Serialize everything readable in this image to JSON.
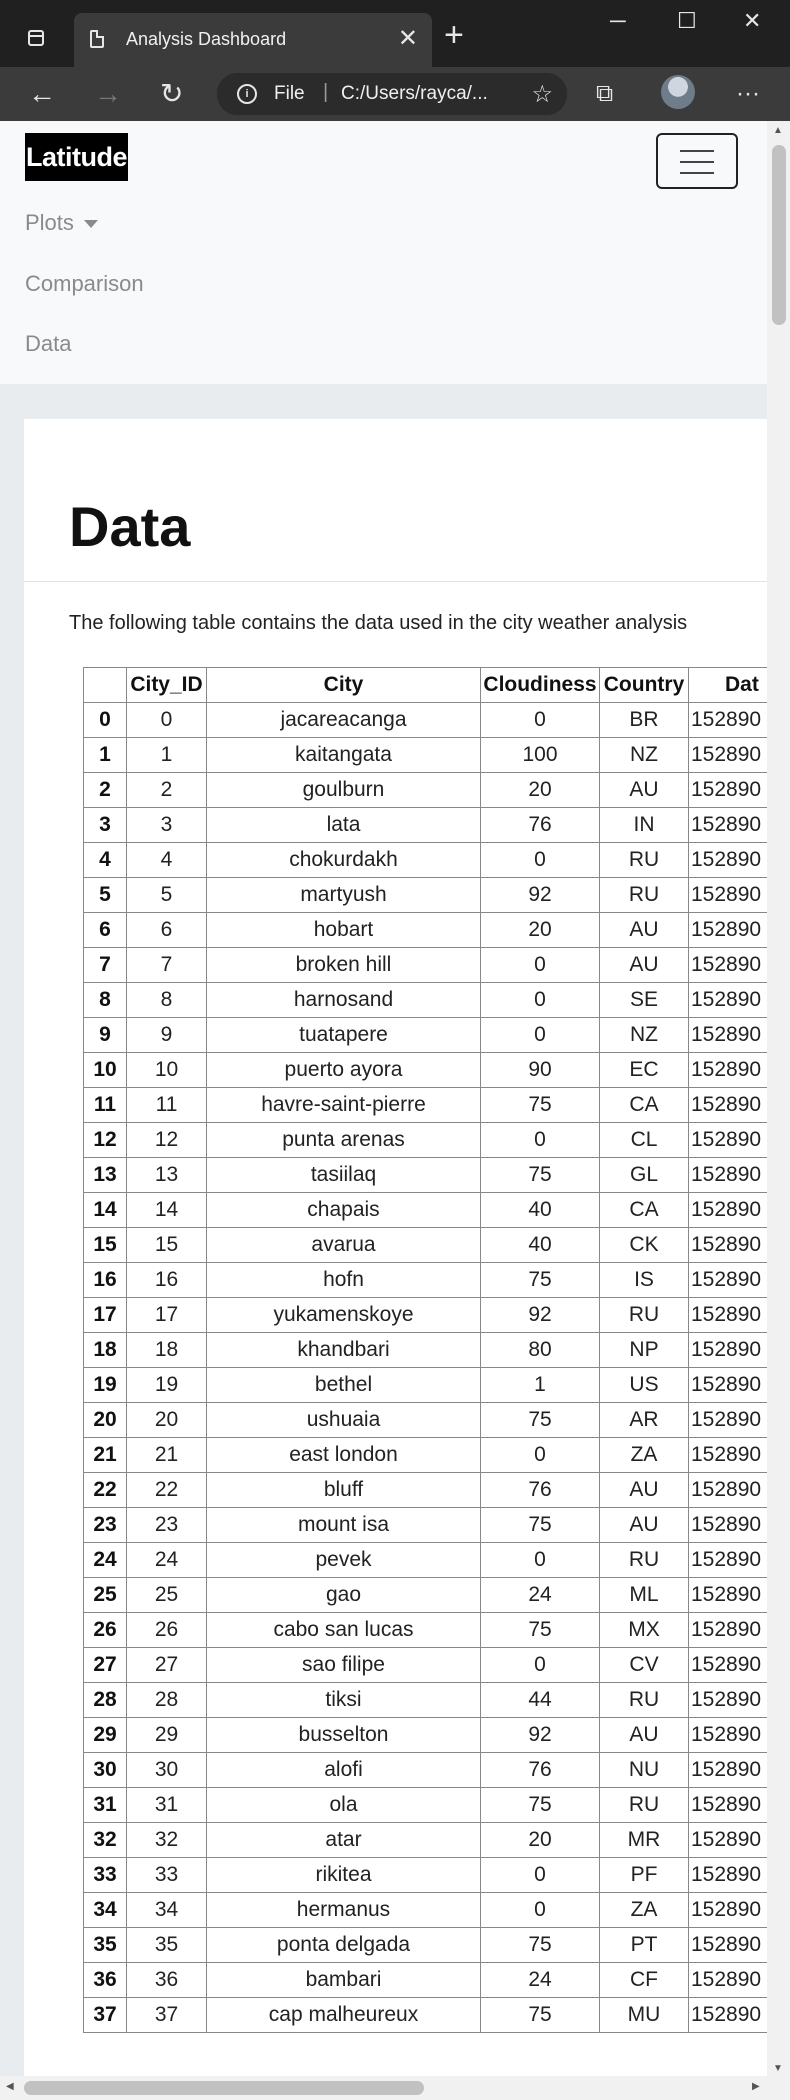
{
  "browser": {
    "tab_title": "Analysis Dashboard",
    "url_scheme": "File",
    "url_path": "C:/Users/rayca/..."
  },
  "navbar": {
    "brand": "Latitude",
    "links": [
      "Plots",
      "Comparison",
      "Data"
    ]
  },
  "page": {
    "heading": "Data",
    "intro": "The following table contains the data used in the city weather analysis"
  },
  "table": {
    "headers": [
      "",
      "City_ID",
      "City",
      "Cloudiness",
      "Country",
      "Dat"
    ],
    "rows": [
      [
        "0",
        "0",
        "jacareacanga",
        "0",
        "BR",
        "152890"
      ],
      [
        "1",
        "1",
        "kaitangata",
        "100",
        "NZ",
        "152890"
      ],
      [
        "2",
        "2",
        "goulburn",
        "20",
        "AU",
        "152890"
      ],
      [
        "3",
        "3",
        "lata",
        "76",
        "IN",
        "152890"
      ],
      [
        "4",
        "4",
        "chokurdakh",
        "0",
        "RU",
        "152890"
      ],
      [
        "5",
        "5",
        "martyush",
        "92",
        "RU",
        "152890"
      ],
      [
        "6",
        "6",
        "hobart",
        "20",
        "AU",
        "152890"
      ],
      [
        "7",
        "7",
        "broken hill",
        "0",
        "AU",
        "152890"
      ],
      [
        "8",
        "8",
        "harnosand",
        "0",
        "SE",
        "152890"
      ],
      [
        "9",
        "9",
        "tuatapere",
        "0",
        "NZ",
        "152890"
      ],
      [
        "10",
        "10",
        "puerto ayora",
        "90",
        "EC",
        "152890"
      ],
      [
        "11",
        "11",
        "havre-saint-pierre",
        "75",
        "CA",
        "152890"
      ],
      [
        "12",
        "12",
        "punta arenas",
        "0",
        "CL",
        "152890"
      ],
      [
        "13",
        "13",
        "tasiilaq",
        "75",
        "GL",
        "152890"
      ],
      [
        "14",
        "14",
        "chapais",
        "40",
        "CA",
        "152890"
      ],
      [
        "15",
        "15",
        "avarua",
        "40",
        "CK",
        "152890"
      ],
      [
        "16",
        "16",
        "hofn",
        "75",
        "IS",
        "152890"
      ],
      [
        "17",
        "17",
        "yukamenskoye",
        "92",
        "RU",
        "152890"
      ],
      [
        "18",
        "18",
        "khandbari",
        "80",
        "NP",
        "152890"
      ],
      [
        "19",
        "19",
        "bethel",
        "1",
        "US",
        "152890"
      ],
      [
        "20",
        "20",
        "ushuaia",
        "75",
        "AR",
        "152890"
      ],
      [
        "21",
        "21",
        "east london",
        "0",
        "ZA",
        "152890"
      ],
      [
        "22",
        "22",
        "bluff",
        "76",
        "AU",
        "152890"
      ],
      [
        "23",
        "23",
        "mount isa",
        "75",
        "AU",
        "152890"
      ],
      [
        "24",
        "24",
        "pevek",
        "0",
        "RU",
        "152890"
      ],
      [
        "25",
        "25",
        "gao",
        "24",
        "ML",
        "152890"
      ],
      [
        "26",
        "26",
        "cabo san lucas",
        "75",
        "MX",
        "152890"
      ],
      [
        "27",
        "27",
        "sao filipe",
        "0",
        "CV",
        "152890"
      ],
      [
        "28",
        "28",
        "tiksi",
        "44",
        "RU",
        "152890"
      ],
      [
        "29",
        "29",
        "busselton",
        "92",
        "AU",
        "152890"
      ],
      [
        "30",
        "30",
        "alofi",
        "76",
        "NU",
        "152890"
      ],
      [
        "31",
        "31",
        "ola",
        "75",
        "RU",
        "152890"
      ],
      [
        "32",
        "32",
        "atar",
        "20",
        "MR",
        "152890"
      ],
      [
        "33",
        "33",
        "rikitea",
        "0",
        "PF",
        "152890"
      ],
      [
        "34",
        "34",
        "hermanus",
        "0",
        "ZA",
        "152890"
      ],
      [
        "35",
        "35",
        "ponta delgada",
        "75",
        "PT",
        "152890"
      ],
      [
        "36",
        "36",
        "bambari",
        "24",
        "CF",
        "152890"
      ],
      [
        "37",
        "37",
        "cap malheureux",
        "75",
        "MU",
        "152890"
      ]
    ]
  }
}
